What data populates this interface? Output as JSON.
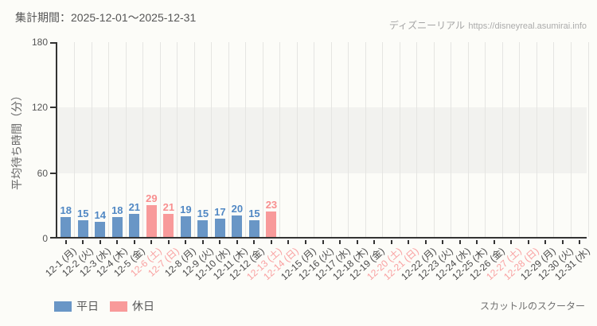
{
  "header": {
    "period_label": "集計期間：2025-12-01～2025-12-31",
    "watermark_site": "ディズニーリアル",
    "watermark_url": "https://disneyreal.asumirai.info"
  },
  "footer": {
    "attraction_name": "スカットルのスクーター"
  },
  "legend": {
    "items": [
      {
        "label": "平日",
        "type": "weekday"
      },
      {
        "label": "休日",
        "type": "holiday"
      }
    ]
  },
  "colors": {
    "background": "#fcfcf8",
    "weekday_bar": "#6996c6",
    "weekday_value_label": "#5188c4",
    "holiday_bar": "#f89a9a",
    "holiday_value_label": "#f88f8f",
    "axis": "#333333",
    "tick_label": "#4a4a4a",
    "weekend_tick_label": "#f9a0a0",
    "grid_line": "#e5e5e2",
    "band_fill": "#f2f2ef"
  },
  "chart_data": {
    "type": "bar",
    "title": "集計期間：2025-12-01～2025-12-31",
    "ylabel": "平均待ち時間（分）",
    "xlabel": "",
    "ylim": [
      0,
      180
    ],
    "yticks": [
      0,
      60,
      120,
      180
    ],
    "shaded_band": {
      "from": 60,
      "to": 120
    },
    "grid": "vertical",
    "legend_position": "bottom-left",
    "series_note": "single series; bar color depends on day type (weekday/holiday)",
    "days": [
      {
        "label": "12-1 (月)",
        "value": 18,
        "type": "weekday"
      },
      {
        "label": "12-2 (火)",
        "value": 15,
        "type": "weekday"
      },
      {
        "label": "12-3 (水)",
        "value": 14,
        "type": "weekday"
      },
      {
        "label": "12-4 (木)",
        "value": 18,
        "type": "weekday"
      },
      {
        "label": "12-5 (金)",
        "value": 21,
        "type": "weekday"
      },
      {
        "label": "12-6 (土)",
        "value": 29,
        "type": "holiday"
      },
      {
        "label": "12-7 (日)",
        "value": 21,
        "type": "holiday"
      },
      {
        "label": "12-8 (月)",
        "value": 19,
        "type": "weekday"
      },
      {
        "label": "12-9 (火)",
        "value": 15,
        "type": "weekday"
      },
      {
        "label": "12-10 (水)",
        "value": 17,
        "type": "weekday"
      },
      {
        "label": "12-11 (木)",
        "value": 20,
        "type": "weekday"
      },
      {
        "label": "12-12 (金)",
        "value": 15,
        "type": "weekday"
      },
      {
        "label": "12-13 (土)",
        "value": 23,
        "type": "holiday"
      },
      {
        "label": "12-14 (日)",
        "value": null,
        "type": "holiday"
      },
      {
        "label": "12-15 (月)",
        "value": null,
        "type": "weekday"
      },
      {
        "label": "12-16 (火)",
        "value": null,
        "type": "weekday"
      },
      {
        "label": "12-17 (水)",
        "value": null,
        "type": "weekday"
      },
      {
        "label": "12-18 (木)",
        "value": null,
        "type": "weekday"
      },
      {
        "label": "12-19 (金)",
        "value": null,
        "type": "weekday"
      },
      {
        "label": "12-20 (土)",
        "value": null,
        "type": "holiday"
      },
      {
        "label": "12-21 (日)",
        "value": null,
        "type": "holiday"
      },
      {
        "label": "12-22 (月)",
        "value": null,
        "type": "weekday"
      },
      {
        "label": "12-23 (火)",
        "value": null,
        "type": "weekday"
      },
      {
        "label": "12-24 (水)",
        "value": null,
        "type": "weekday"
      },
      {
        "label": "12-25 (木)",
        "value": null,
        "type": "weekday"
      },
      {
        "label": "12-26 (金)",
        "value": null,
        "type": "weekday"
      },
      {
        "label": "12-27 (土)",
        "value": null,
        "type": "holiday"
      },
      {
        "label": "12-28 (日)",
        "value": null,
        "type": "holiday"
      },
      {
        "label": "12-29 (月)",
        "value": null,
        "type": "weekday"
      },
      {
        "label": "12-30 (火)",
        "value": null,
        "type": "weekday"
      },
      {
        "label": "12-31 (水)",
        "value": null,
        "type": "weekday"
      }
    ]
  }
}
